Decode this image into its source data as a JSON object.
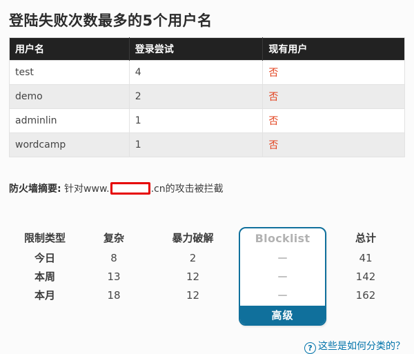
{
  "page": {
    "title": "登陆失败次数最多的5个用户名"
  },
  "login_table": {
    "headers": [
      "用户名",
      "登录尝试",
      "现有用户"
    ],
    "rows": [
      {
        "username": "test",
        "attempts": "4",
        "existing": "否"
      },
      {
        "username": "demo",
        "attempts": "2",
        "existing": "否"
      },
      {
        "username": "adminlin",
        "attempts": "1",
        "existing": "否"
      },
      {
        "username": "wordcamp",
        "attempts": "1",
        "existing": "否"
      }
    ]
  },
  "firewall_summary": {
    "label": "防火墙摘要:",
    "text_before": " 针对www.",
    "redacted_domain": "",
    "text_after": ".cn的攻击被拦截"
  },
  "stats_table": {
    "headers": {
      "type": "限制类型",
      "complex": "复杂",
      "brute_force": "暴力破解",
      "blocklist": "Blocklist",
      "total": "总计"
    },
    "rows": [
      {
        "label": "今日",
        "complex": "8",
        "brute_force": "2",
        "blocklist": "—",
        "total": "41"
      },
      {
        "label": "本周",
        "complex": "13",
        "brute_force": "12",
        "blocklist": "—",
        "total": "142"
      },
      {
        "label": "本月",
        "complex": "18",
        "brute_force": "12",
        "blocklist": "—",
        "total": "162"
      }
    ],
    "upgrade_button": "高级"
  },
  "help_link": {
    "icon_glyph": "?",
    "label": "这些是如何分类的？"
  },
  "colors": {
    "header_bg": "#222222",
    "alt_row_bg": "#ececec",
    "no_red": "#e2401c",
    "redaction_red": "#e60000",
    "accent_blue": "#10709c",
    "link_blue": "#0073aa"
  }
}
